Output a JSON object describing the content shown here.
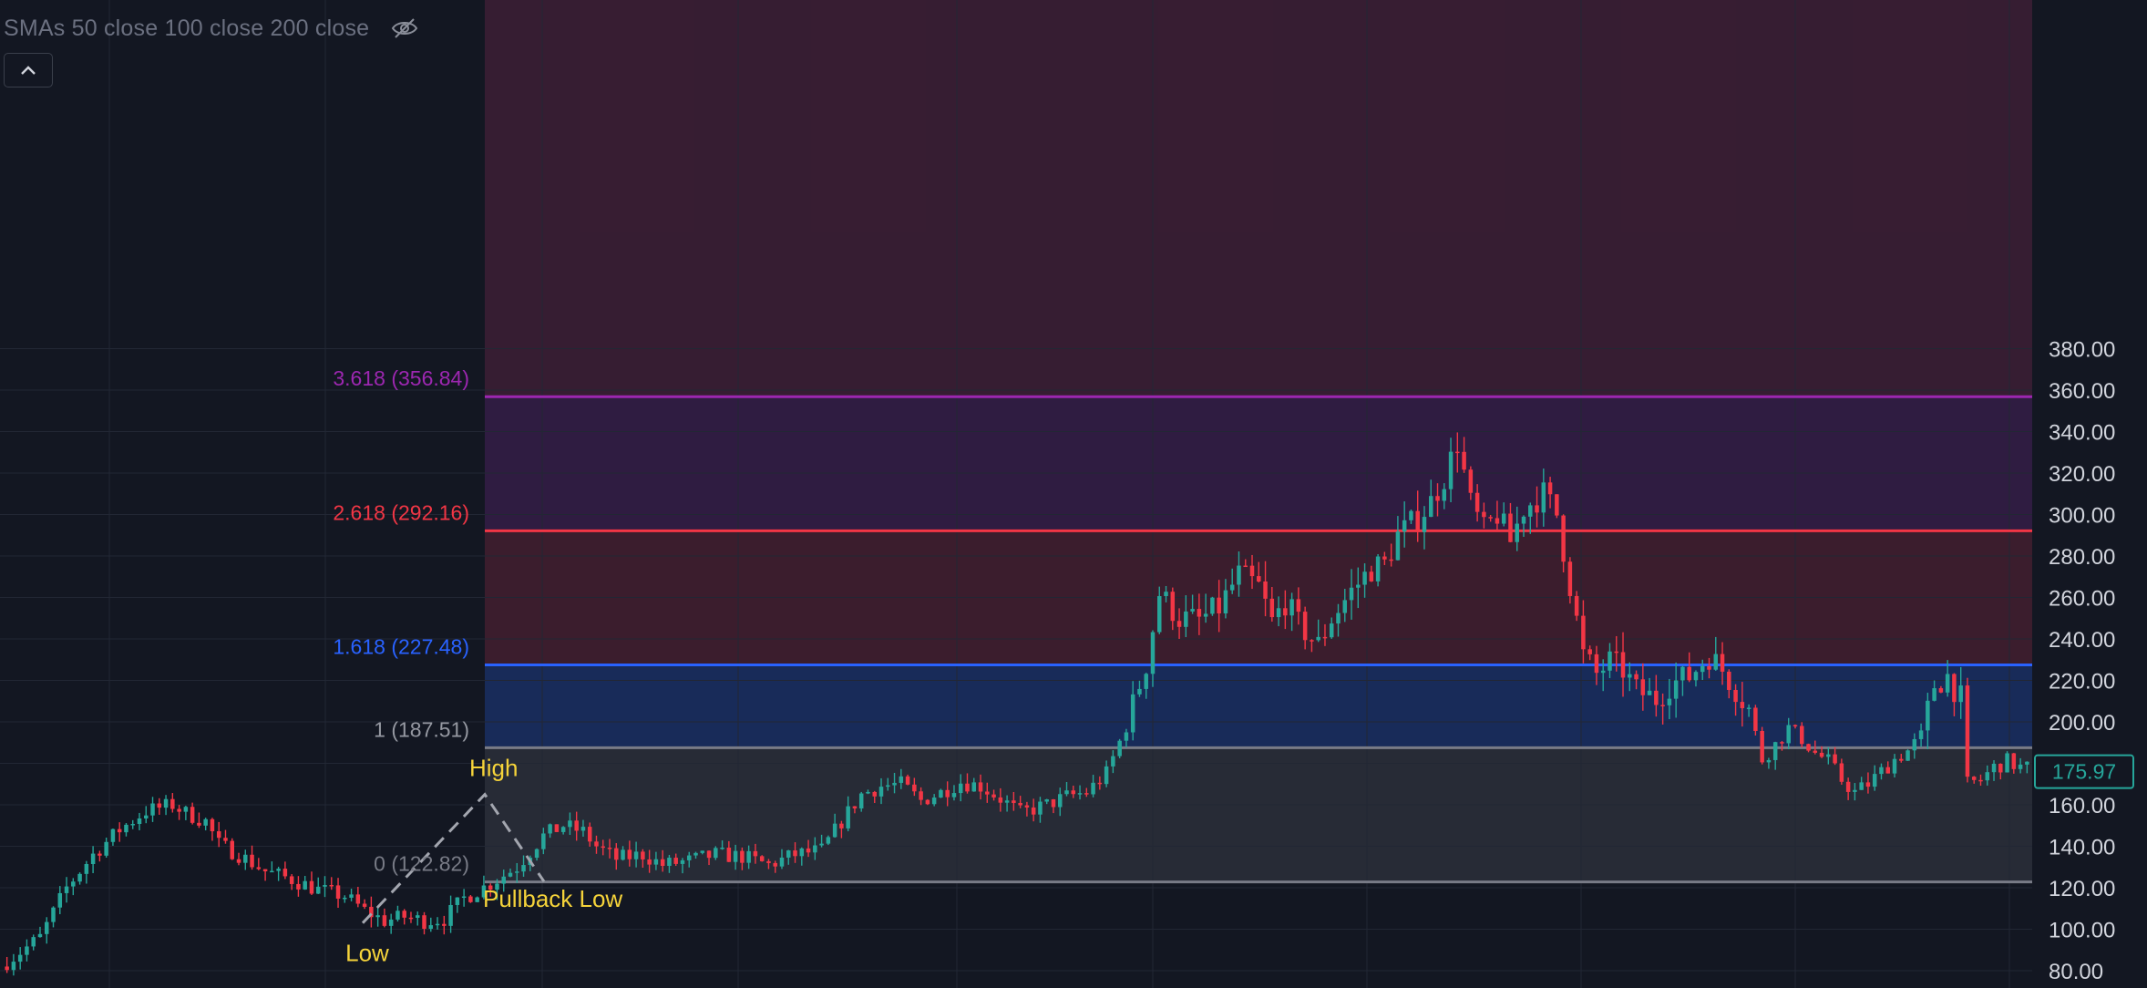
{
  "legend": {
    "text": "SMAs 50 close 100 close 200 close",
    "eye_icon": "eye-crossed-icon"
  },
  "collapse_icon": "chevron-up-icon",
  "colors": {
    "background": "#131722",
    "up": "#26a69a",
    "down": "#f23645",
    "grid": "#222734",
    "axis_text": "#d1d4dc",
    "annotation": "#f5d33a",
    "fib_0": "#787b86",
    "fib_1": "#787b86",
    "fib_1618": "#2962ff",
    "fib_2618": "#f23645",
    "fib_3618": "#9c27b0",
    "price_tag": "#26a69a"
  },
  "chart_data": {
    "type": "candlestick",
    "y_axis": {
      "min": 80,
      "max": 390,
      "ticks": [
        "80.00",
        "100.00",
        "120.00",
        "140.00",
        "160.00",
        "180.00",
        "200.00",
        "220.00",
        "240.00",
        "260.00",
        "280.00",
        "300.00",
        "320.00",
        "340.00",
        "360.00",
        "380.00"
      ]
    },
    "grid": true,
    "current_price": "175.97",
    "fib_levels": [
      {
        "ratio": 0,
        "price": 122.82,
        "label": "0 (122.82)"
      },
      {
        "ratio": 1,
        "price": 187.51,
        "label": "1 (187.51)"
      },
      {
        "ratio": 1.618,
        "price": 227.48,
        "label": "1.618 (227.48)"
      },
      {
        "ratio": 2.618,
        "price": 292.16,
        "label": "2.618 (292.16)"
      },
      {
        "ratio": 3.618,
        "price": 356.84,
        "label": "3.618 (356.84)"
      }
    ],
    "annotations": [
      {
        "text": "Low",
        "price": 103
      },
      {
        "text": "High",
        "price": 165
      },
      {
        "text": "Pullback Low",
        "price": 123
      }
    ],
    "price_path": [
      [
        0,
        82
      ],
      [
        6,
        96
      ],
      [
        10,
        120
      ],
      [
        14,
        136
      ],
      [
        18,
        148
      ],
      [
        22,
        157
      ],
      [
        26,
        160
      ],
      [
        28,
        156
      ],
      [
        31,
        152
      ],
      [
        33,
        141
      ],
      [
        36,
        136
      ],
      [
        40,
        128
      ],
      [
        44,
        124
      ],
      [
        48,
        119
      ],
      [
        52,
        116
      ],
      [
        55,
        109
      ],
      [
        58,
        104
      ],
      [
        61,
        106
      ],
      [
        64,
        104
      ],
      [
        67,
        105
      ],
      [
        70,
        115
      ],
      [
        74,
        122
      ],
      [
        78,
        130
      ],
      [
        82,
        145
      ],
      [
        85,
        150
      ],
      [
        88,
        147
      ],
      [
        90,
        140
      ],
      [
        93,
        134
      ],
      [
        97,
        136
      ],
      [
        100,
        131
      ],
      [
        104,
        133
      ],
      [
        108,
        136
      ],
      [
        112,
        135
      ],
      [
        116,
        131
      ],
      [
        120,
        136
      ],
      [
        124,
        138
      ],
      [
        127,
        152
      ],
      [
        130,
        165
      ],
      [
        133,
        169
      ],
      [
        136,
        170
      ],
      [
        139,
        162
      ],
      [
        142,
        166
      ],
      [
        145,
        171
      ],
      [
        148,
        169
      ],
      [
        151,
        163
      ],
      [
        154,
        156
      ],
      [
        158,
        160
      ],
      [
        161,
        164
      ],
      [
        164,
        166
      ],
      [
        167,
        175
      ],
      [
        170,
        198
      ],
      [
        173,
        228
      ],
      [
        175,
        262
      ],
      [
        178,
        250
      ],
      [
        181,
        249
      ],
      [
        184,
        255
      ],
      [
        187,
        271
      ],
      [
        190,
        265
      ],
      [
        192,
        248
      ],
      [
        194,
        258
      ],
      [
        196,
        247
      ],
      [
        199,
        237
      ],
      [
        201,
        250
      ],
      [
        204,
        263
      ],
      [
        207,
        274
      ],
      [
        209,
        276
      ],
      [
        211,
        290
      ],
      [
        214,
        298
      ],
      [
        216,
        306
      ],
      [
        218,
        318
      ],
      [
        220,
        335
      ],
      [
        222,
        305
      ],
      [
        224,
        292
      ],
      [
        226,
        300
      ],
      [
        228,
        287
      ],
      [
        230,
        303
      ],
      [
        233,
        310
      ],
      [
        235,
        300
      ],
      [
        237,
        266
      ],
      [
        239,
        232
      ],
      [
        241,
        223
      ],
      [
        243,
        229
      ],
      [
        245,
        225
      ],
      [
        247,
        215
      ],
      [
        250,
        211
      ],
      [
        252,
        218
      ],
      [
        255,
        222
      ],
      [
        258,
        232
      ],
      [
        260,
        225
      ],
      [
        262,
        216
      ],
      [
        264,
        206
      ],
      [
        266,
        182
      ],
      [
        268,
        189
      ],
      [
        270,
        197
      ],
      [
        272,
        192
      ],
      [
        274,
        185
      ],
      [
        276,
        181
      ],
      [
        278,
        172
      ],
      [
        280,
        166
      ],
      [
        282,
        170
      ],
      [
        284,
        176
      ],
      [
        286,
        182
      ],
      [
        288,
        186
      ],
      [
        290,
        193
      ],
      [
        292,
        218
      ],
      [
        294,
        222
      ],
      [
        296,
        211
      ],
      [
        297,
        170
      ],
      [
        299,
        172
      ],
      [
        301,
        178
      ],
      [
        303,
        181
      ],
      [
        305,
        178
      ]
    ]
  }
}
